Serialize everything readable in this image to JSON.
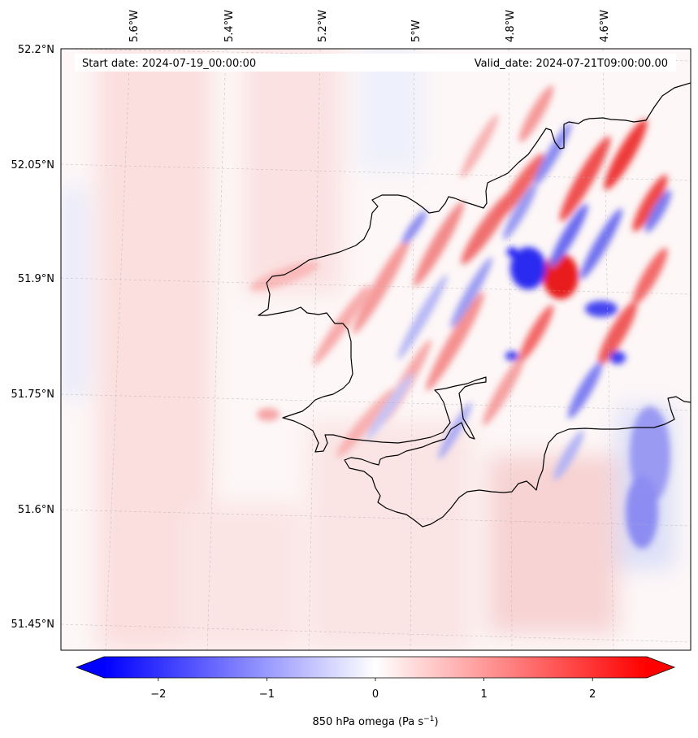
{
  "header": {
    "start_date": "Start date: 2024-07-19_00:00:00",
    "valid_date": "Valid_date: 2024-07-21T09:00:00.00"
  },
  "map": {
    "lon_labels": [
      "5.6°W",
      "5.4°W",
      "5.2°W",
      "5°W",
      "4.8°W",
      "4.6°W"
    ],
    "lat_labels": [
      "52.2°N",
      "52.05°N",
      "51.9°N",
      "51.75°N",
      "51.6°N",
      "51.45°N"
    ],
    "field": "850 hPa omega",
    "extent": {
      "lon": [
        -5.75,
        -4.45
      ],
      "lat": [
        51.42,
        52.2
      ]
    }
  },
  "colorbar": {
    "label": "850 hPa omega (Pa s",
    "label_sup": "−1",
    "label_end": ")",
    "tick_values": [
      -2,
      -1,
      0,
      1,
      2
    ],
    "tick_labels": [
      "−2",
      "−1",
      "0",
      "1",
      "2"
    ],
    "range": [
      -2.5,
      2.5
    ],
    "colors": {
      "min": "#0000ff",
      "mid": "#ffffff",
      "max": "#ff0000"
    }
  },
  "colors": {
    "coastline": "#000000",
    "grid": "#b0b0b0"
  }
}
